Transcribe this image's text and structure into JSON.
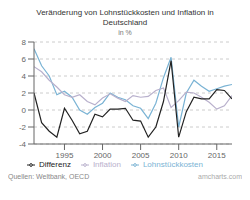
{
  "chart_data": {
    "type": "line",
    "title": "Veränderung von Lohnstückkosten und Inflation in\nDeutschland",
    "subtitle": "in %",
    "annotations": [
      "Quellen: Weltbank, OECD",
      "amcharts.com"
    ],
    "x": [
      1991,
      1992,
      1993,
      1994,
      1995,
      1996,
      1997,
      1998,
      1999,
      2000,
      2001,
      2002,
      2003,
      2004,
      2005,
      2006,
      2007,
      2008,
      2009,
      2010,
      2011,
      2012,
      2013,
      2014,
      2015,
      2016,
      2017
    ],
    "xlim": [
      1991,
      2017
    ],
    "xticks": [
      1995,
      2000,
      2005,
      2010,
      2015
    ],
    "ylim": [
      -4,
      8
    ],
    "yticks": [
      -4,
      -2,
      0,
      2,
      4,
      6,
      8
    ],
    "grid": true,
    "legend": "bottom",
    "series": [
      {
        "name": "Lohnstückkosten",
        "color": "#7ab3d4",
        "values": [
          7.2,
          5.2,
          4.0,
          1.8,
          2.2,
          1.5,
          0.0,
          -0.5,
          0.3,
          0.8,
          2.0,
          1.5,
          1.2,
          0.5,
          0.2,
          -1.0,
          0.8,
          3.8,
          6.2,
          -2.0,
          2.0,
          3.5,
          2.8,
          2.2,
          2.5,
          2.8,
          3.0
        ]
      },
      {
        "name": "Inflation",
        "color": "#b8b0cc",
        "values": [
          5.1,
          4.5,
          3.5,
          2.7,
          1.8,
          1.5,
          1.8,
          1.0,
          0.6,
          1.4,
          1.9,
          1.4,
          1.0,
          1.7,
          1.5,
          1.6,
          2.3,
          2.6,
          0.3,
          1.1,
          2.1,
          2.0,
          1.5,
          0.9,
          0.1,
          0.5,
          1.7
        ]
      },
      {
        "name": "Differenz",
        "color": "#222222",
        "values": [
          2.0,
          -1.5,
          -2.5,
          -3.2,
          0.2,
          -1.2,
          -2.8,
          -2.5,
          -0.5,
          -0.8,
          0.1,
          0.1,
          0.2,
          -1.2,
          -1.3,
          -3.2,
          -2.0,
          1.0,
          5.8,
          -3.2,
          -0.2,
          1.5,
          1.3,
          1.3,
          2.4,
          2.3,
          1.3
        ]
      }
    ]
  }
}
